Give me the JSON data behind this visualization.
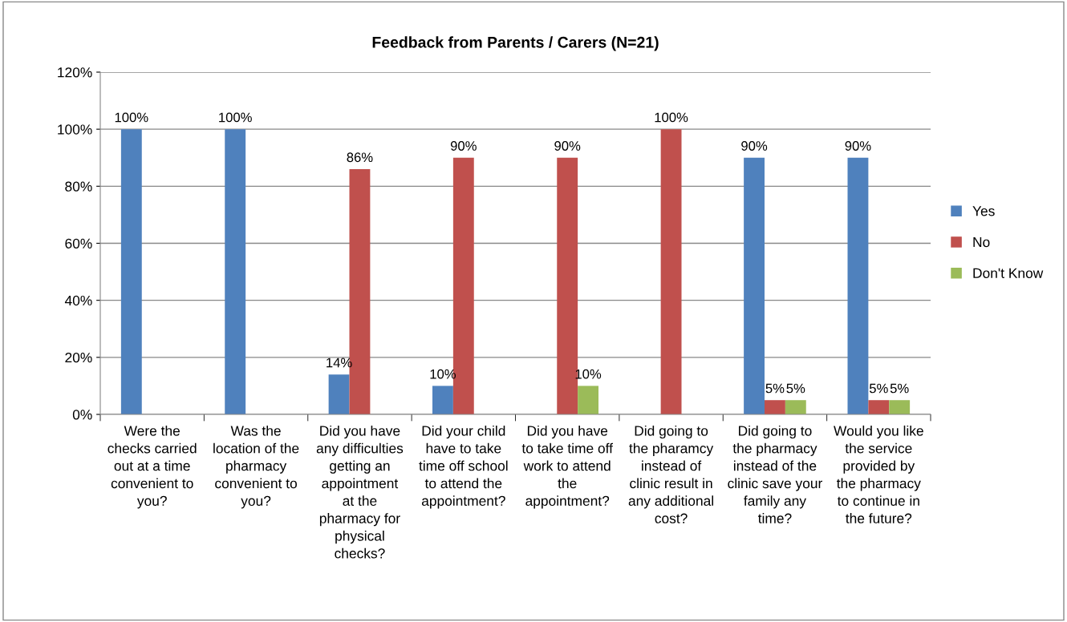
{
  "chart_data": {
    "type": "bar",
    "title": "Feedback from Parents / Carers (N=21)",
    "categories": [
      "Were the\nchecks carried\nout at a time\nconvenient to\nyou?",
      "Was the\nlocation of the\npharmacy\nconvenient to\nyou?",
      "Did you have\nany difficulties\ngetting an\nappointment\nat the\npharmacy for\nphysical\nchecks?",
      "Did your child\nhave to take\ntime off school\nto attend the\nappointment?",
      "Did you have\nto take time off\nwork to attend\nthe\nappointment?",
      "Did going to\nthe pharamcy\ninstead of\nclinic result in\nany additional\ncost?",
      "Did going to\nthe pharmacy\ninstead of the\nclinic save your\nfamily any\ntime?",
      "Would you like\nthe service\nprovided by\nthe pharmacy\nto continue in\nthe future?"
    ],
    "series": [
      {
        "name": "Yes",
        "color": "#4f81bd",
        "values": [
          100,
          100,
          14,
          10,
          0,
          0,
          90,
          90
        ],
        "value_labels": [
          "100%",
          "100%",
          "14%",
          "10%",
          null,
          null,
          "90%",
          "90%"
        ]
      },
      {
        "name": "No",
        "color": "#c0504d",
        "values": [
          0,
          0,
          86,
          90,
          90,
          100,
          5,
          5
        ],
        "value_labels": [
          null,
          null,
          "86%",
          "90%",
          "90%",
          "100%",
          "5%",
          "5%"
        ]
      },
      {
        "name": "Don't Know",
        "color": "#9bbb59",
        "values": [
          0,
          0,
          0,
          0,
          10,
          0,
          5,
          5
        ],
        "value_labels": [
          null,
          null,
          null,
          null,
          "10%",
          null,
          "5%",
          "5%"
        ]
      }
    ],
    "ylim": [
      0,
      120
    ],
    "yticks": [
      {
        "value": 0,
        "label": "0%"
      },
      {
        "value": 20,
        "label": "20%"
      },
      {
        "value": 40,
        "label": "40%"
      },
      {
        "value": 60,
        "label": "60%"
      },
      {
        "value": 80,
        "label": "80%"
      },
      {
        "value": 100,
        "label": "100%"
      },
      {
        "value": 120,
        "label": "120%"
      }
    ],
    "grid": "y",
    "legend": "right"
  }
}
